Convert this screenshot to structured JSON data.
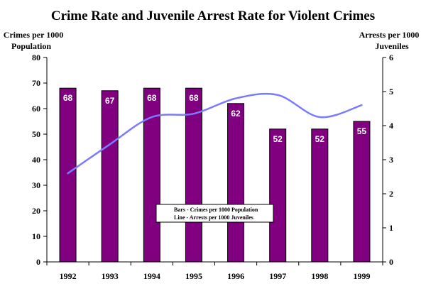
{
  "chart_data": {
    "type": "bar+line",
    "title": "Crime Rate and Juvenile Arrest Rate for Violent Crimes",
    "categories": [
      "1992",
      "1993",
      "1994",
      "1995",
      "1996",
      "1997",
      "1998",
      "1999"
    ],
    "ylabel_left": [
      "Crimes per 1000",
      "Population"
    ],
    "ylabel_right": [
      "Arrests per 1000",
      "Juveniles"
    ],
    "ylim_left": [
      0,
      80
    ],
    "ylim_right": [
      0,
      6
    ],
    "yticks_left": [
      "0",
      "10",
      "20",
      "30",
      "40",
      "50",
      "60",
      "70",
      "80"
    ],
    "yticks_right": [
      "0",
      "1",
      "2",
      "3",
      "4",
      "5",
      "6"
    ],
    "series": [
      {
        "name": "Crimes per 1000 Population",
        "type": "bar",
        "axis": "left",
        "values": [
          68,
          67,
          68,
          68,
          62,
          52,
          52,
          55
        ],
        "labels": [
          "68",
          "67",
          "68",
          "68",
          "62",
          "52",
          "52",
          "55"
        ],
        "color": "#800080"
      },
      {
        "name": "Arrests per 1000 Juveniles",
        "type": "line",
        "axis": "right",
        "values": [
          2.6,
          3.45,
          4.25,
          4.35,
          4.8,
          4.9,
          4.25,
          4.6
        ],
        "color": "#7b7bff"
      }
    ],
    "legend": {
      "lines": [
        "Bars - Crimes per 1000 Population",
        "Line - Arrests per 1000 Juveniles"
      ],
      "position": "center-bottom"
    },
    "grid": false
  }
}
